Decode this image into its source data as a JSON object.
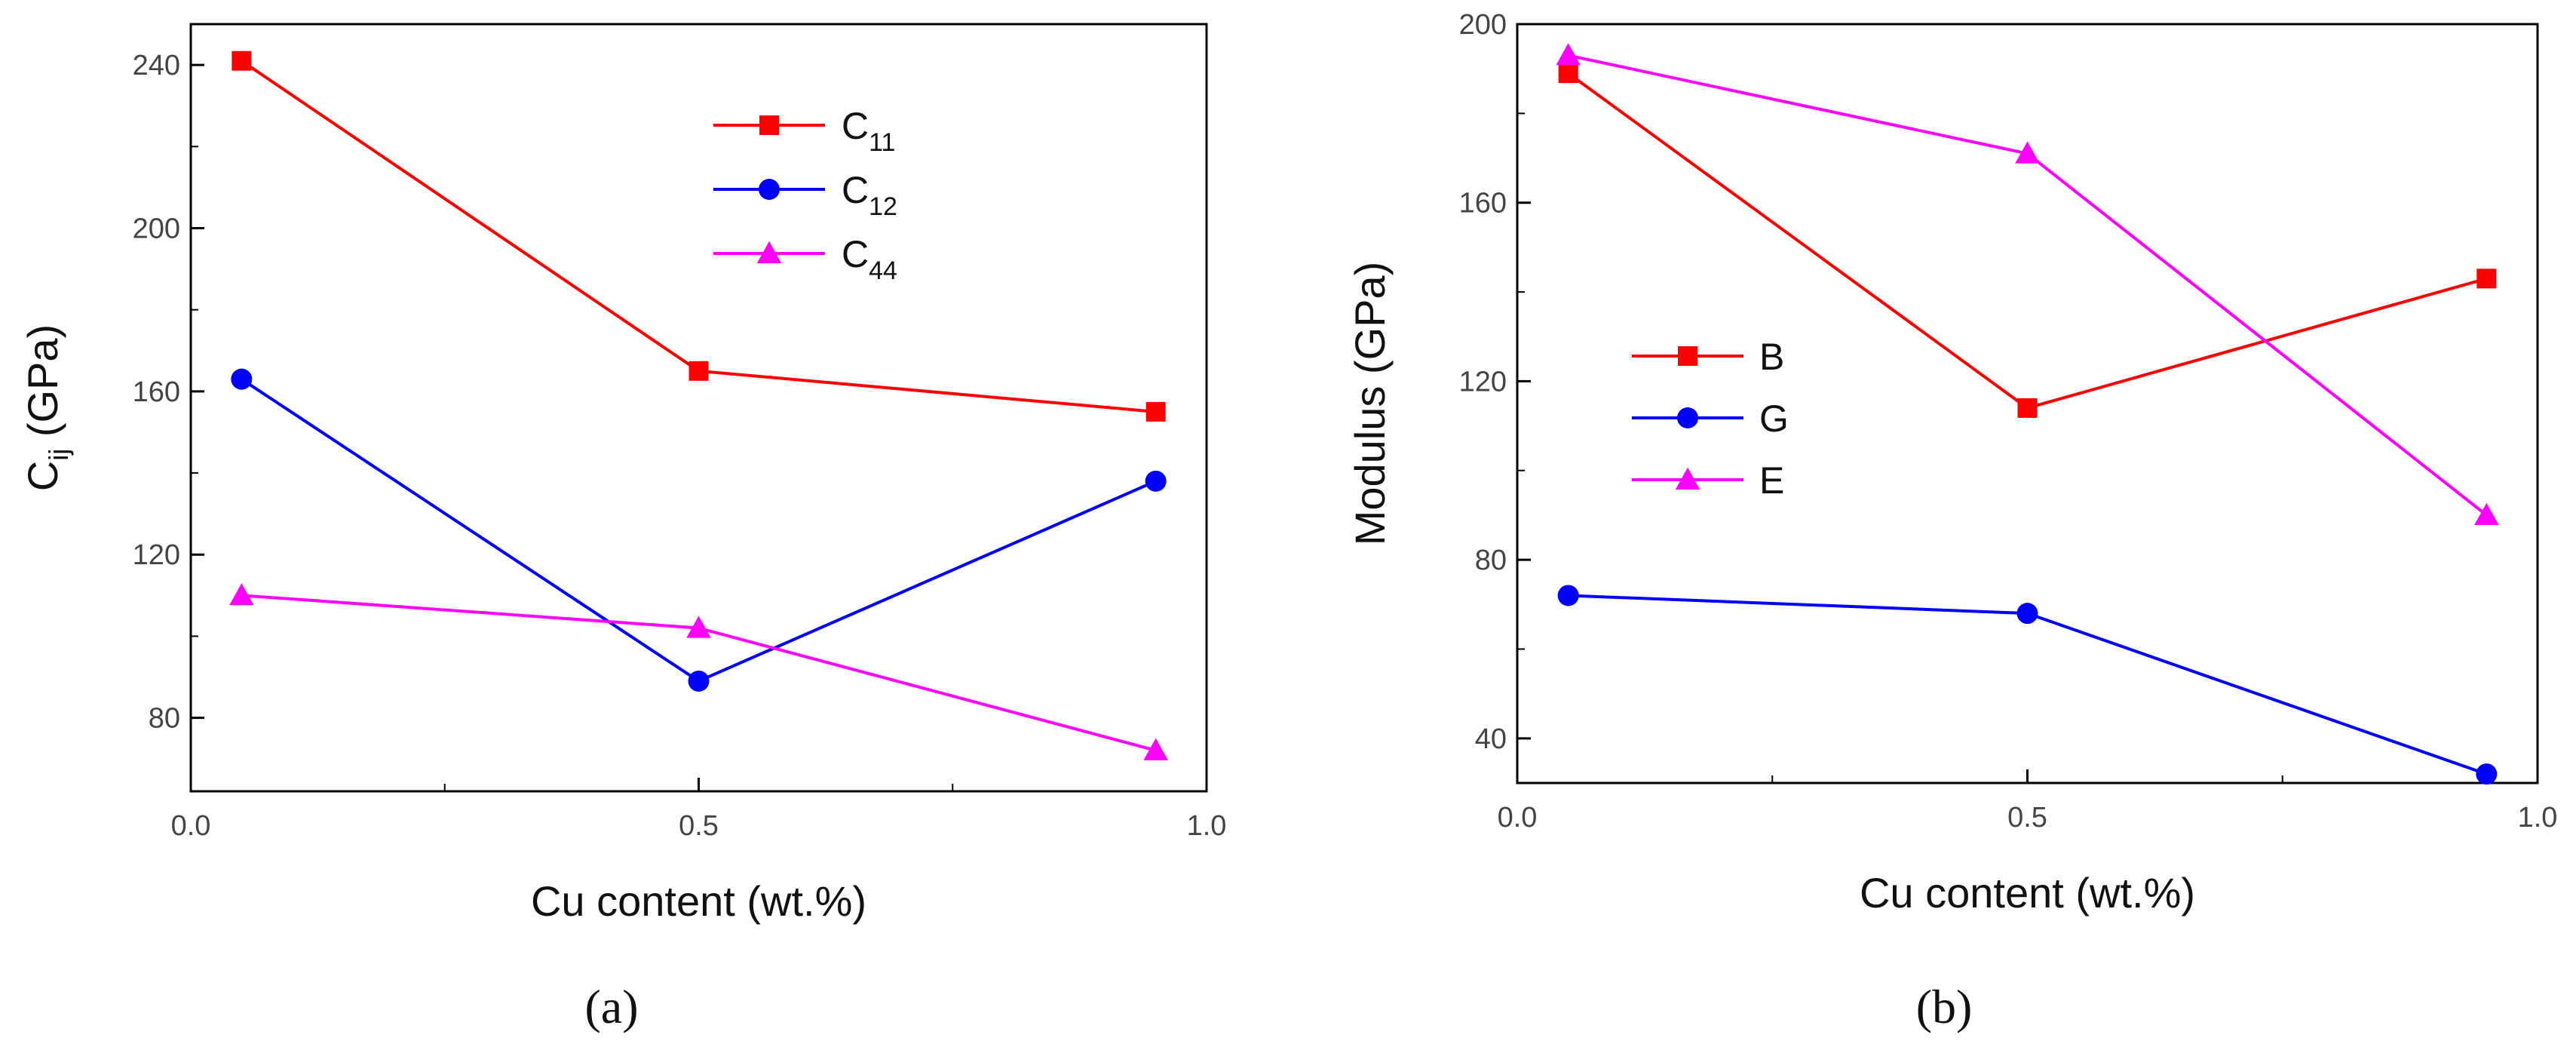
{
  "chart_data": [
    {
      "type": "line",
      "panel": "a",
      "x": [
        0.05,
        0.5,
        0.95
      ],
      "xlabel": "Cu content (wt.%)",
      "ylabel": "C",
      "ylabel_sub": "ij",
      "ylabel_unit": " (GPa)",
      "xlim": [
        0.0,
        1.0
      ],
      "ylim": [
        62,
        250
      ],
      "xticks": [
        "0.0",
        "0.5",
        "1.0"
      ],
      "yticks": [
        "80",
        "120",
        "160",
        "200",
        "240"
      ],
      "legend_position": "top-right",
      "series": [
        {
          "name": "C",
          "sub": "11",
          "color": "#ff0000",
          "marker": "square",
          "values": [
            241,
            165,
            155
          ]
        },
        {
          "name": "C",
          "sub": "12",
          "color": "#0000ff",
          "marker": "circle",
          "values": [
            163,
            89,
            138
          ]
        },
        {
          "name": "C",
          "sub": "44",
          "color": "#ff00ff",
          "marker": "triangle",
          "values": [
            110,
            102,
            72
          ]
        }
      ]
    },
    {
      "type": "line",
      "panel": "b",
      "x": [
        0.05,
        0.5,
        0.95
      ],
      "xlabel": "Cu content (wt.%)",
      "ylabel": "Modulus (GPa)",
      "ylabel_sub": "",
      "ylabel_unit": "",
      "xlim": [
        0.0,
        1.0
      ],
      "ylim": [
        30,
        200
      ],
      "xticks": [
        "0.0",
        "0.5",
        "1.0"
      ],
      "yticks": [
        "40",
        "80",
        "120",
        "160",
        "200"
      ],
      "legend_position": "middle-left",
      "series": [
        {
          "name": "B",
          "sub": "",
          "color": "#ff0000",
          "marker": "square",
          "values": [
            189,
            114,
            143
          ]
        },
        {
          "name": "G",
          "sub": "",
          "color": "#0000ff",
          "marker": "circle",
          "values": [
            72,
            68,
            32
          ]
        },
        {
          "name": "E",
          "sub": "",
          "color": "#ff00ff",
          "marker": "triangle",
          "values": [
            193,
            171,
            90
          ]
        }
      ]
    }
  ],
  "panel_labels": {
    "a": "(a)",
    "b": "(b)"
  }
}
